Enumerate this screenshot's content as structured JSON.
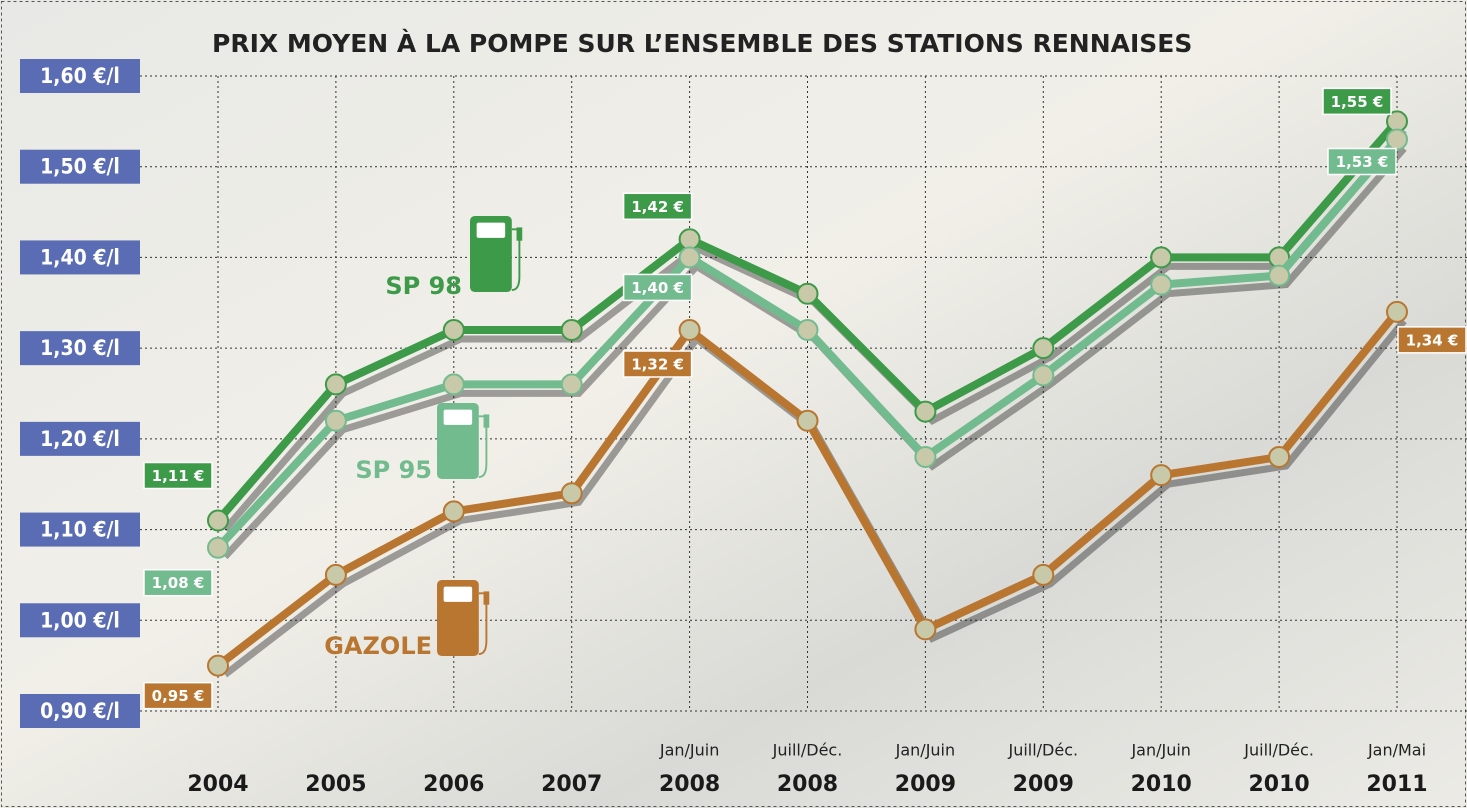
{
  "chart_data": {
    "type": "line",
    "title": "PRIX MOYEN À LA POMPE SUR L’ENSEMBLE DES STATIONS RENNAISES",
    "categories": [
      "2004",
      "2005",
      "2006",
      "2007",
      "2008",
      "2008",
      "2009",
      "2009",
      "2010",
      "2010",
      "2011"
    ],
    "periods": [
      null,
      null,
      null,
      null,
      "Jan/Juin",
      "Juill/Déc.",
      "Jan/Juin",
      "Juill/Déc.",
      "Jan/Juin",
      "Juill/Déc.",
      "Jan/Mai"
    ],
    "ylim": [
      0.9,
      1.6
    ],
    "yticks": [
      {
        "value": 0.9,
        "label": "0,90 €/l"
      },
      {
        "value": 1.0,
        "label": "1,00 €/l"
      },
      {
        "value": 1.1,
        "label": "1,10 €/l"
      },
      {
        "value": 1.2,
        "label": "1,20 €/l"
      },
      {
        "value": 1.3,
        "label": "1,30 €/l"
      },
      {
        "value": 1.4,
        "label": "1,40 €/l"
      },
      {
        "value": 1.5,
        "label": "1,50 €/l"
      },
      {
        "value": 1.6,
        "label": "1,60 €/l"
      }
    ],
    "grid": true,
    "series": [
      {
        "name": "SP 98",
        "color": "#3d9a49",
        "values": [
          1.11,
          1.26,
          1.32,
          1.32,
          1.42,
          1.36,
          1.23,
          1.3,
          1.4,
          1.4,
          1.55
        ],
        "value_labels": [
          "1,11 €",
          null,
          null,
          null,
          "1,42 €",
          null,
          null,
          null,
          null,
          null,
          "1,55 €"
        ]
      },
      {
        "name": "SP 95",
        "color": "#72bb8f",
        "values": [
          1.08,
          1.22,
          1.26,
          1.26,
          1.4,
          1.32,
          1.18,
          1.27,
          1.37,
          1.38,
          1.53
        ],
        "value_labels": [
          "1,08 €",
          null,
          null,
          null,
          "1,40 €",
          null,
          null,
          null,
          null,
          null,
          "1,53 €"
        ]
      },
      {
        "name": "GAZOLE",
        "color": "#b87630",
        "values": [
          0.95,
          1.05,
          1.12,
          1.14,
          1.32,
          1.22,
          0.99,
          1.05,
          1.16,
          1.18,
          1.34
        ],
        "value_labels": [
          "0,95 €",
          null,
          null,
          null,
          "1,32 €",
          null,
          null,
          null,
          null,
          null,
          "1,34 €"
        ]
      }
    ]
  }
}
